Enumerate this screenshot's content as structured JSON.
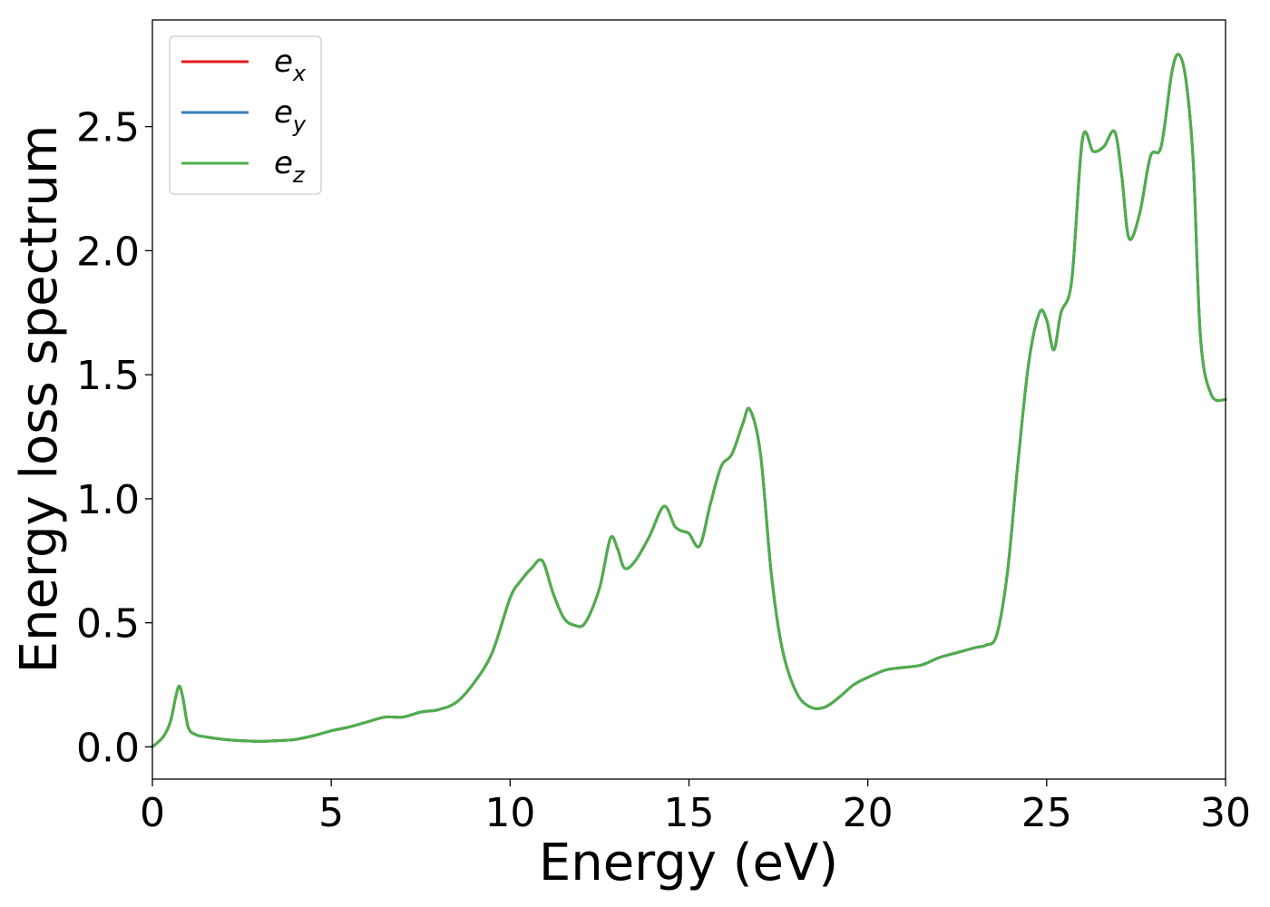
{
  "chart_data": {
    "type": "line",
    "title": "",
    "xlabel": "Energy (eV)",
    "ylabel": "Energy loss spectrum",
    "xlim": [
      0,
      30
    ],
    "ylim": [
      -0.13,
      2.93
    ],
    "xticks": [
      0,
      5,
      10,
      15,
      20,
      25,
      30
    ],
    "xtick_labels": [
      "0",
      "5",
      "10",
      "15",
      "20",
      "25",
      "30"
    ],
    "yticks": [
      0.0,
      0.5,
      1.0,
      1.5,
      2.0,
      2.5
    ],
    "ytick_labels": [
      "0.0",
      "0.5",
      "1.0",
      "1.5",
      "2.0",
      "2.5"
    ],
    "grid": false,
    "legend_position": "top-left",
    "x": [
      0,
      0.3,
      0.5,
      0.65,
      0.75,
      0.85,
      1.0,
      1.2,
      1.5,
      2.0,
      2.5,
      3.0,
      3.5,
      4.0,
      4.5,
      5.0,
      5.5,
      6.0,
      6.5,
      7.0,
      7.5,
      8.0,
      8.5,
      9.0,
      9.5,
      10.0,
      10.3,
      10.6,
      10.9,
      11.2,
      11.5,
      11.8,
      12.1,
      12.5,
      12.8,
      13.0,
      13.2,
      13.5,
      13.9,
      14.3,
      14.6,
      14.8,
      15.0,
      15.3,
      15.6,
      15.9,
      16.2,
      16.5,
      16.7,
      17.0,
      17.3,
      17.6,
      18.0,
      18.4,
      18.8,
      19.2,
      19.6,
      20.0,
      20.5,
      21.0,
      21.5,
      22.0,
      22.5,
      23.0,
      23.3,
      23.6,
      23.9,
      24.2,
      24.5,
      24.8,
      25.0,
      25.2,
      25.4,
      25.7,
      26.0,
      26.3,
      26.6,
      26.9,
      27.1,
      27.3,
      27.6,
      27.9,
      28.2,
      28.5,
      28.7,
      28.9,
      29.1,
      29.3,
      29.6,
      30.0
    ],
    "series": [
      {
        "name": "e_x",
        "label_main": "e",
        "label_sub": "x",
        "color": "#e41a1c",
        "values": [
          0.0,
          0.04,
          0.1,
          0.2,
          0.245,
          0.2,
          0.08,
          0.05,
          0.04,
          0.03,
          0.025,
          0.022,
          0.025,
          0.03,
          0.045,
          0.065,
          0.08,
          0.1,
          0.12,
          0.12,
          0.14,
          0.15,
          0.18,
          0.26,
          0.38,
          0.6,
          0.67,
          0.72,
          0.75,
          0.62,
          0.52,
          0.49,
          0.5,
          0.64,
          0.84,
          0.8,
          0.72,
          0.75,
          0.85,
          0.97,
          0.89,
          0.87,
          0.86,
          0.81,
          0.98,
          1.13,
          1.18,
          1.3,
          1.36,
          1.18,
          0.7,
          0.4,
          0.22,
          0.16,
          0.16,
          0.2,
          0.25,
          0.28,
          0.31,
          0.32,
          0.33,
          0.36,
          0.38,
          0.4,
          0.41,
          0.45,
          0.7,
          1.15,
          1.55,
          1.75,
          1.72,
          1.6,
          1.75,
          1.88,
          2.45,
          2.4,
          2.42,
          2.48,
          2.3,
          2.05,
          2.15,
          2.38,
          2.42,
          2.72,
          2.79,
          2.68,
          2.35,
          1.65,
          1.42,
          1.4
        ]
      },
      {
        "name": "e_y",
        "label_main": "e",
        "label_sub": "y",
        "color": "#377eb8",
        "values": [
          0.0,
          0.04,
          0.1,
          0.2,
          0.245,
          0.2,
          0.08,
          0.05,
          0.04,
          0.03,
          0.025,
          0.022,
          0.025,
          0.03,
          0.045,
          0.065,
          0.08,
          0.1,
          0.12,
          0.12,
          0.14,
          0.15,
          0.18,
          0.26,
          0.38,
          0.6,
          0.67,
          0.72,
          0.75,
          0.62,
          0.52,
          0.49,
          0.5,
          0.64,
          0.84,
          0.8,
          0.72,
          0.75,
          0.85,
          0.97,
          0.89,
          0.87,
          0.86,
          0.81,
          0.98,
          1.13,
          1.18,
          1.3,
          1.36,
          1.18,
          0.7,
          0.4,
          0.22,
          0.16,
          0.16,
          0.2,
          0.25,
          0.28,
          0.31,
          0.32,
          0.33,
          0.36,
          0.38,
          0.4,
          0.41,
          0.45,
          0.7,
          1.15,
          1.55,
          1.75,
          1.72,
          1.6,
          1.75,
          1.88,
          2.45,
          2.4,
          2.42,
          2.48,
          2.3,
          2.05,
          2.15,
          2.38,
          2.42,
          2.72,
          2.79,
          2.68,
          2.35,
          1.65,
          1.42,
          1.4
        ]
      },
      {
        "name": "e_z",
        "label_main": "e",
        "label_sub": "z",
        "color": "#4daf4a",
        "values": [
          0.0,
          0.04,
          0.1,
          0.2,
          0.245,
          0.2,
          0.08,
          0.05,
          0.04,
          0.03,
          0.025,
          0.022,
          0.025,
          0.03,
          0.045,
          0.065,
          0.08,
          0.1,
          0.12,
          0.12,
          0.14,
          0.15,
          0.18,
          0.26,
          0.38,
          0.6,
          0.67,
          0.72,
          0.75,
          0.62,
          0.52,
          0.49,
          0.5,
          0.64,
          0.84,
          0.8,
          0.72,
          0.75,
          0.85,
          0.97,
          0.89,
          0.87,
          0.86,
          0.81,
          0.98,
          1.13,
          1.18,
          1.3,
          1.36,
          1.18,
          0.7,
          0.4,
          0.22,
          0.16,
          0.16,
          0.2,
          0.25,
          0.28,
          0.31,
          0.32,
          0.33,
          0.36,
          0.38,
          0.4,
          0.41,
          0.45,
          0.7,
          1.15,
          1.55,
          1.75,
          1.72,
          1.6,
          1.75,
          1.88,
          2.45,
          2.4,
          2.42,
          2.48,
          2.3,
          2.05,
          2.15,
          2.38,
          2.42,
          2.72,
          2.79,
          2.68,
          2.35,
          1.65,
          1.42,
          1.4
        ]
      }
    ]
  }
}
